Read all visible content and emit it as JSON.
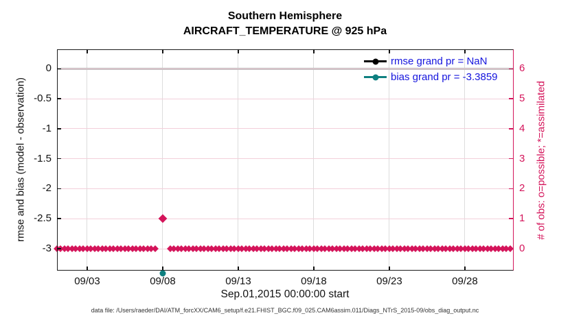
{
  "figure": {
    "title_line1": "Southern Hemisphere",
    "title_line2": "AIRCRAFT_TEMPERATURE @ 925 hPa",
    "caption": "data file: /Users/raeder/DAI/ATM_forcXX/CAM6_setup/f.e21.FHIST_BGC.f09_025.CAM6assim.011/Diags_NTrS_2015-09/obs_diag_output.nc"
  },
  "colors": {
    "obs_crimson": "#d4145a",
    "pink_gridline": "#f3cfda",
    "gray_gridline": "#dcdcdc",
    "zero_line_gray": "#b9b9b9",
    "bias_teal": "#0e8080",
    "rmse_black": "#000000",
    "legend_text_blue": "#1414dd",
    "axis_black": "#1a1a1a"
  },
  "chart_data": {
    "type": "line",
    "title": "Southern Hemisphere",
    "subtitle": "AIRCRAFT_TEMPERATURE @ 925 hPa",
    "xlabel": "Sep.01,2015 00:00:00 start",
    "ylabel_left": "rmse and bias (model - observation)",
    "ylabel_right": "# of obs: o=possible; *=assimilated",
    "x_ticks": [
      {
        "label": "09/03",
        "day": 2
      },
      {
        "label": "09/08",
        "day": 7
      },
      {
        "label": "09/13",
        "day": 12
      },
      {
        "label": "09/18",
        "day": 17
      },
      {
        "label": "09/23",
        "day": 22
      },
      {
        "label": "09/28",
        "day": 27
      }
    ],
    "x_range_days": [
      0,
      30.23
    ],
    "x_start": "Sep.01,2015 00:00:00",
    "yleft_ticks": [
      "0",
      "-0.5",
      "-1",
      "-1.5",
      "-2",
      "-2.5",
      "-3"
    ],
    "yleft_tick_values": [
      0,
      -0.5,
      -1,
      -1.5,
      -2,
      -2.5,
      -3
    ],
    "yleft_range": [
      -3.365,
      0.323
    ],
    "yright_ticks": [
      "6",
      "5",
      "4",
      "3",
      "2",
      "1",
      "0"
    ],
    "yright_tick_values": [
      6,
      5,
      4,
      3,
      2,
      1,
      0
    ],
    "yright_range": [
      -0.731,
      6.646
    ],
    "grid": true,
    "legend_position": "top-right-inside",
    "reference_line": {
      "axis": "left",
      "value": 0,
      "color": "#b9b9b9"
    },
    "series": [
      {
        "name": "rmse",
        "legend_label": "rmse grand pr = NaN",
        "color": "#000000",
        "axis": "left",
        "points": []
      },
      {
        "name": "bias",
        "legend_label": "bias grand pr = -3.3859",
        "color": "#0e8080",
        "axis": "left",
        "points": [
          {
            "day": 7,
            "date": "09/08",
            "value": -3.3859,
            "note": "below y-axis lower limit; marker clipped at bottom axis edge"
          }
        ]
      },
      {
        "name": "num_obs_possible_and_assimilated",
        "color": "#d4145a",
        "axis": "right",
        "marker": "diamond",
        "sampling": {
          "start_day": 0,
          "end_day": 30,
          "step_days": 0.25
        },
        "baseline_value": 0,
        "exceptions": [
          {
            "day": 7,
            "date": "09/08",
            "value": 1
          }
        ]
      }
    ]
  }
}
